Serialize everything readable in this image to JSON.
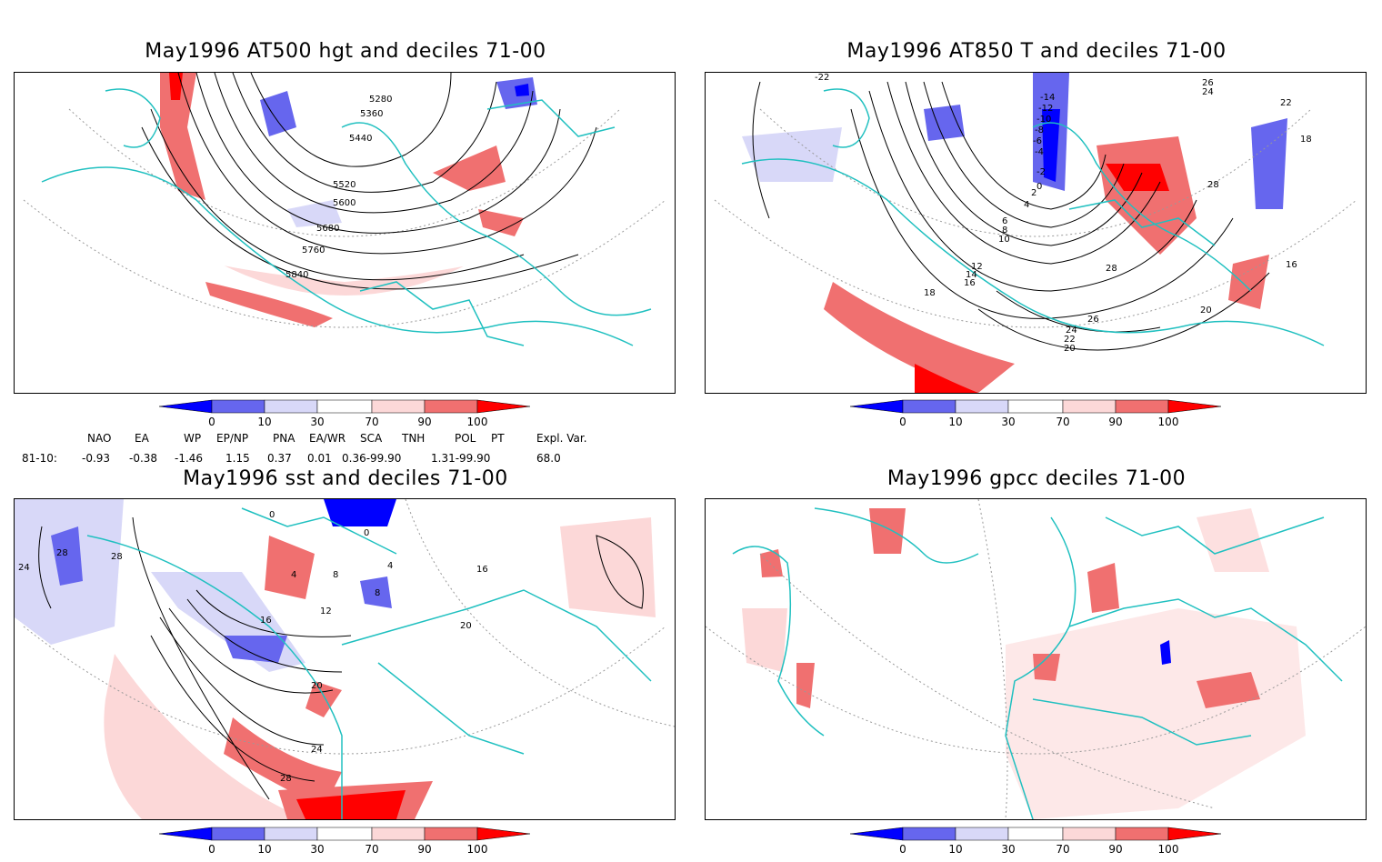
{
  "panels": [
    {
      "title": "May1996 AT500 hgt and deciles 71-00",
      "contour_labels": [
        "5280",
        "5360",
        "5440",
        "5520",
        "5600",
        "5680",
        "5760",
        "5840"
      ]
    },
    {
      "title": "May1996 AT850 T and deciles 71-00",
      "contour_labels": [
        "-22",
        "-14",
        "-12",
        "-10",
        "-8",
        "-6",
        "-4",
        "-2",
        "0",
        "2",
        "4",
        "6",
        "8",
        "10",
        "12",
        "14",
        "16",
        "18",
        "20",
        "22",
        "24",
        "26",
        "28",
        "16",
        "18",
        "20",
        "22",
        "24",
        "26",
        "28"
      ]
    },
    {
      "title": "May1996 sst and deciles 71-00",
      "contour_labels": [
        "0",
        "0",
        "4",
        "8",
        "12",
        "16",
        "20",
        "24",
        "28",
        "28",
        "24",
        "28",
        "16",
        "20",
        "8",
        "4"
      ]
    },
    {
      "title": "May1996 gpcc deciles 71-00",
      "contour_labels": []
    }
  ],
  "colorbar": {
    "ticks": [
      "0",
      "10",
      "30",
      "70",
      "90",
      "100"
    ],
    "colors": [
      "#0000ff",
      "#6666ee",
      "#d8d8f8",
      "#ffffff",
      "#fcd8d8",
      "#f07070",
      "#ff0000"
    ]
  },
  "index_table": {
    "headers": [
      "NAO",
      "EA",
      "WP",
      "EP/NP",
      "PNA",
      "EA/WR",
      "SCA",
      "TNH",
      "POL",
      "PT",
      "Expl. Var."
    ],
    "row_label": "81-10:",
    "values": [
      "-0.93",
      "-0.38",
      "-1.46",
      "1.15",
      "0.37",
      "0.01",
      "0.36-99.90",
      "1.31-99.90",
      "68.0"
    ]
  },
  "colors": {
    "coastline": "#20c0c0",
    "contour": "#000000"
  }
}
